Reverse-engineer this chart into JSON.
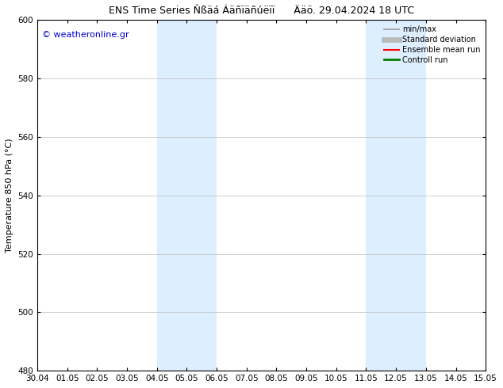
{
  "title_left": "ENS Time Series Ňßäá Áäñïäñúëïï",
  "title_right": "Ääö. 29.04.2024 18 UTC",
  "ylabel": "Temperature 850 hPa (°C)",
  "watermark": "© weatheronline.gr",
  "ylim": [
    480,
    600
  ],
  "yticks": [
    480,
    500,
    520,
    540,
    560,
    580,
    600
  ],
  "xlabels": [
    "30.04",
    "01.05",
    "02.05",
    "03.05",
    "04.05",
    "05.05",
    "06.05",
    "07.05",
    "08.05",
    "09.05",
    "10.05",
    "11.05",
    "12.05",
    "13.05",
    "14.05",
    "15.05"
  ],
  "shaded_bands": [
    {
      "xstart": 4,
      "xend": 6,
      "color": "#ddeeff"
    },
    {
      "xstart": 11,
      "xend": 13,
      "color": "#ddeeff"
    }
  ],
  "legend_entries": [
    {
      "label": "min/max",
      "color": "#999999",
      "lw": 1.2
    },
    {
      "label": "Standard deviation",
      "color": "#bbbbbb",
      "lw": 5
    },
    {
      "label": "Ensemble mean run",
      "color": "red",
      "lw": 1.5
    },
    {
      "label": "Controll run",
      "color": "green",
      "lw": 2
    }
  ],
  "background_color": "#ffffff",
  "grid_color": "#bbbbbb",
  "title_fontsize": 9,
  "axis_fontsize": 8,
  "tick_fontsize": 7.5,
  "watermark_color": "#0000cc",
  "watermark_fontsize": 8
}
